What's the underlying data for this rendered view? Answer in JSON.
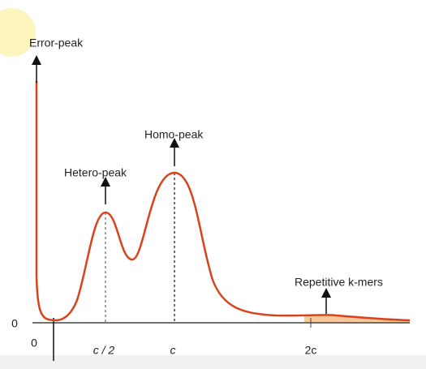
{
  "annotations": {
    "error_peak": "Error-peak",
    "hetero_peak": "Hetero-peak",
    "homo_peak": "Homo-peak",
    "repetitive": "Repetitive k-mers"
  },
  "axis": {
    "y_zero": "0",
    "x_labels": [
      "0",
      "c / 2",
      "c",
      "2c"
    ]
  }
}
